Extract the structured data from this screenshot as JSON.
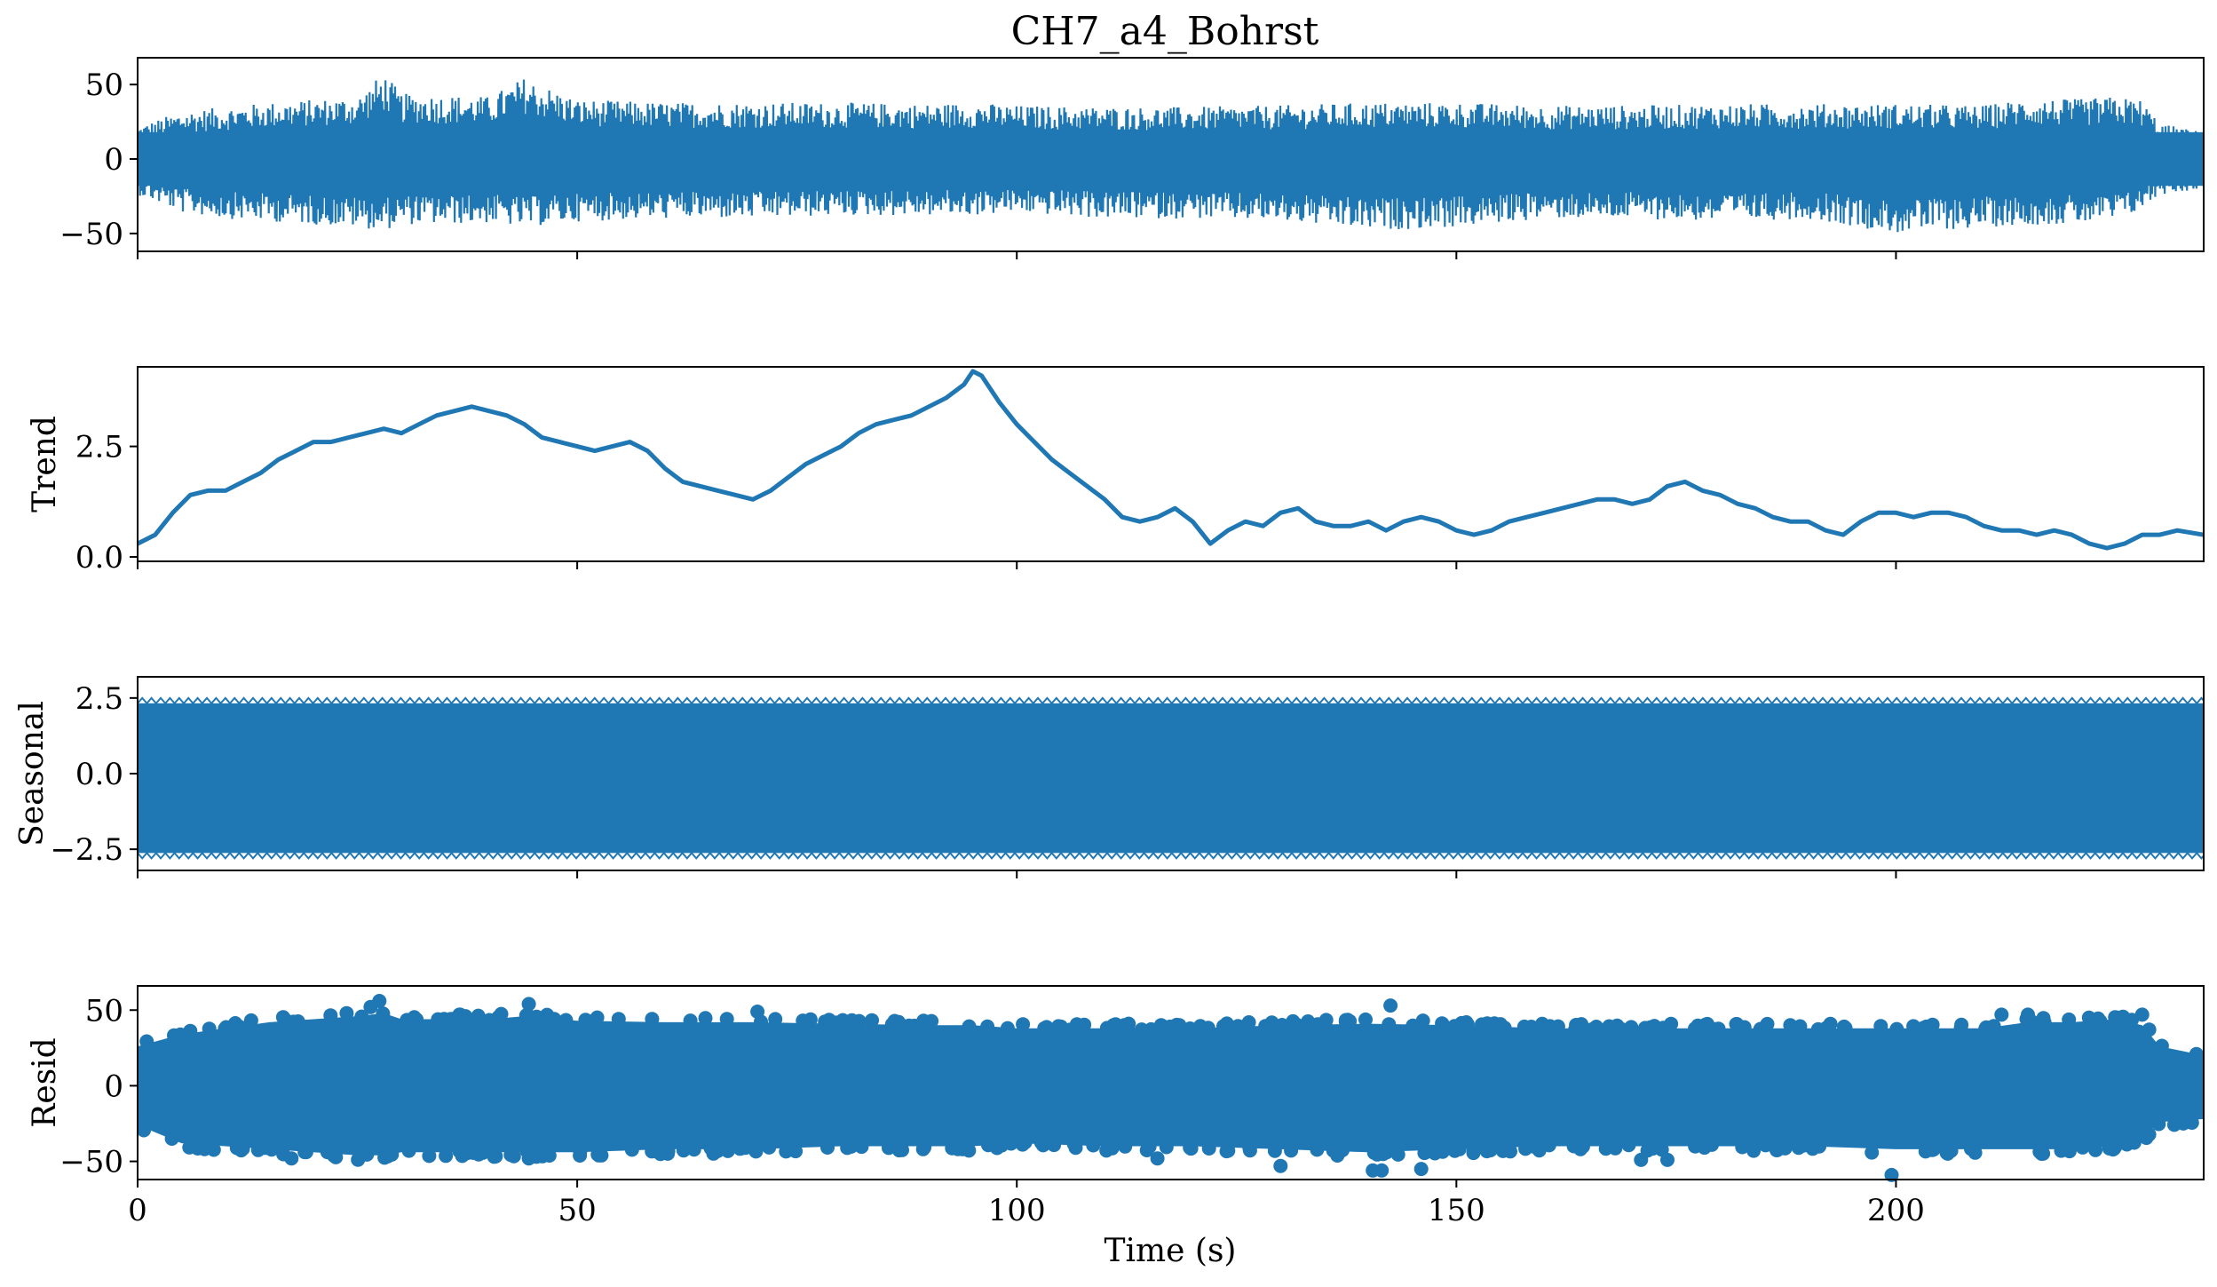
{
  "chart_data": {
    "type": "line",
    "title": "CH7_a4_Bohrst",
    "xlabel": "Time (s)",
    "xlim": [
      0,
      235
    ],
    "x_ticks": [
      0,
      50,
      100,
      150,
      200
    ],
    "color": "#1f77b4",
    "panels": [
      {
        "name": "observed",
        "ylabel": "",
        "kind": "line",
        "ylim": [
          -62,
          68
        ],
        "y_ticks": [
          -50,
          0,
          50
        ],
        "envelope": {
          "x": [
            0,
            5,
            10,
            15,
            20,
            25,
            28,
            30,
            35,
            40,
            44,
            50,
            60,
            70,
            80,
            90,
            95,
            100,
            110,
            120,
            130,
            140,
            150,
            160,
            170,
            180,
            190,
            200,
            210,
            215,
            220,
            225,
            228,
            230,
            235
          ],
          "upper": [
            22,
            32,
            35,
            38,
            40,
            42,
            58,
            44,
            43,
            42,
            55,
            40,
            38,
            38,
            38,
            37,
            38,
            36,
            35,
            35,
            36,
            38,
            38,
            36,
            36,
            37,
            37,
            37,
            36,
            41,
            40,
            42,
            40,
            24,
            18
          ],
          "lower": [
            -24,
            -36,
            -40,
            -42,
            -44,
            -46,
            -48,
            -44,
            -44,
            -43,
            -46,
            -42,
            -40,
            -40,
            -38,
            -38,
            -38,
            -36,
            -40,
            -40,
            -42,
            -48,
            -46,
            -40,
            -40,
            -42,
            -40,
            -50,
            -46,
            -44,
            -44,
            -42,
            -34,
            -24,
            -20
          ]
        }
      },
      {
        "name": "trend",
        "ylabel": "Trend",
        "kind": "line",
        "ylim": [
          -0.1,
          4.3
        ],
        "y_ticks": [
          0.0,
          2.5
        ],
        "x": [
          0,
          2,
          4,
          6,
          8,
          10,
          12,
          14,
          16,
          18,
          20,
          22,
          24,
          26,
          28,
          30,
          32,
          34,
          36,
          38,
          40,
          42,
          44,
          46,
          48,
          50,
          52,
          54,
          56,
          58,
          60,
          62,
          64,
          66,
          68,
          70,
          72,
          74,
          76,
          78,
          80,
          82,
          84,
          86,
          88,
          90,
          92,
          94,
          95,
          96,
          98,
          100,
          102,
          104,
          106,
          108,
          110,
          112,
          114,
          116,
          118,
          120,
          122,
          124,
          126,
          128,
          130,
          132,
          134,
          136,
          138,
          140,
          142,
          144,
          146,
          148,
          150,
          152,
          154,
          156,
          158,
          160,
          162,
          164,
          166,
          168,
          170,
          172,
          174,
          176,
          178,
          180,
          182,
          184,
          186,
          188,
          190,
          192,
          194,
          196,
          198,
          200,
          202,
          204,
          206,
          208,
          210,
          212,
          214,
          216,
          218,
          220,
          222,
          224,
          226,
          228,
          230,
          232,
          235
        ],
        "y": [
          0.3,
          0.5,
          1.0,
          1.4,
          1.5,
          1.5,
          1.7,
          1.9,
          2.2,
          2.4,
          2.6,
          2.6,
          2.7,
          2.8,
          2.9,
          2.8,
          3.0,
          3.2,
          3.3,
          3.4,
          3.3,
          3.2,
          3.0,
          2.7,
          2.6,
          2.5,
          2.4,
          2.5,
          2.6,
          2.4,
          2.0,
          1.7,
          1.6,
          1.5,
          1.4,
          1.3,
          1.5,
          1.8,
          2.1,
          2.3,
          2.5,
          2.8,
          3.0,
          3.1,
          3.2,
          3.4,
          3.6,
          3.9,
          4.2,
          4.1,
          3.5,
          3.0,
          2.6,
          2.2,
          1.9,
          1.6,
          1.3,
          0.9,
          0.8,
          0.9,
          1.1,
          0.8,
          0.3,
          0.6,
          0.8,
          0.7,
          1.0,
          1.1,
          0.8,
          0.7,
          0.7,
          0.8,
          0.6,
          0.8,
          0.9,
          0.8,
          0.6,
          0.5,
          0.6,
          0.8,
          0.9,
          1.0,
          1.1,
          1.2,
          1.3,
          1.3,
          1.2,
          1.3,
          1.6,
          1.7,
          1.5,
          1.4,
          1.2,
          1.1,
          0.9,
          0.8,
          0.8,
          0.6,
          0.5,
          0.8,
          1.0,
          1.0,
          0.9,
          1.0,
          1.0,
          0.9,
          0.7,
          0.6,
          0.6,
          0.5,
          0.6,
          0.5,
          0.3,
          0.2,
          0.3,
          0.5,
          0.5,
          0.6,
          0.5
        ]
      },
      {
        "name": "seasonal",
        "ylabel": "Seasonal",
        "kind": "band",
        "ylim": [
          -3.2,
          3.2
        ],
        "y_ticks": [
          -2.5,
          0.0,
          2.5
        ],
        "band": {
          "high": 2.5,
          "low": -2.8
        }
      },
      {
        "name": "resid",
        "ylabel": "Resid",
        "kind": "scatter",
        "ylim": [
          -62,
          66
        ],
        "y_ticks": [
          -50,
          0,
          50
        ],
        "envelope": {
          "x": [
            0,
            5,
            10,
            15,
            20,
            25,
            28,
            30,
            35,
            40,
            44,
            50,
            60,
            70,
            80,
            90,
            95,
            100,
            110,
            120,
            130,
            140,
            150,
            160,
            170,
            180,
            190,
            200,
            210,
            215,
            220,
            225,
            228,
            230,
            235
          ],
          "upper": [
            26,
            34,
            38,
            42,
            44,
            46,
            48,
            44,
            44,
            44,
            46,
            43,
            42,
            42,
            41,
            40,
            40,
            38,
            38,
            38,
            40,
            41,
            40,
            38,
            38,
            38,
            38,
            38,
            38,
            42,
            42,
            44,
            40,
            26,
            20
          ],
          "lower": [
            -26,
            -38,
            -40,
            -42,
            -44,
            -46,
            -46,
            -44,
            -44,
            -44,
            -44,
            -44,
            -42,
            -42,
            -40,
            -40,
            -40,
            -38,
            -40,
            -40,
            -42,
            -44,
            -42,
            -40,
            -40,
            -40,
            -40,
            -42,
            -42,
            -42,
            -42,
            -40,
            -34,
            -24,
            -22
          ]
        },
        "outliers": [
          {
            "x": 27.5,
            "y": 56
          },
          {
            "x": 44.5,
            "y": 54
          },
          {
            "x": 26.5,
            "y": 52
          },
          {
            "x": 142.5,
            "y": 53
          },
          {
            "x": 130,
            "y": -53
          },
          {
            "x": 140.5,
            "y": -56
          },
          {
            "x": 141.5,
            "y": -56
          },
          {
            "x": 146,
            "y": -55
          },
          {
            "x": 199.5,
            "y": -59
          },
          {
            "x": 17.5,
            "y": -48
          },
          {
            "x": 116,
            "y": -48
          },
          {
            "x": 171,
            "y": -49
          },
          {
            "x": 174,
            "y": -49
          },
          {
            "x": 44.5,
            "y": -48
          },
          {
            "x": 228,
            "y": 47
          },
          {
            "x": 70.5,
            "y": 49
          },
          {
            "x": 212,
            "y": 47
          },
          {
            "x": 215,
            "y": 47
          }
        ]
      }
    ]
  }
}
